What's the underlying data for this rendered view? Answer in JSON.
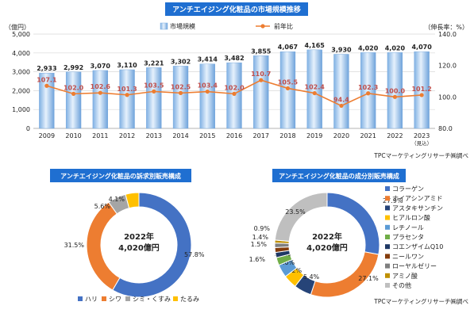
{
  "chart_data": [
    {
      "type": "bar",
      "title": "アンチエイジング化粧品の市場規模推移",
      "ylabel_left": "（億円）",
      "ylabel_right": "（伸長率：%）",
      "source": "TPCマーケティングリサーチ㈱調べ",
      "categories": [
        "2009",
        "2010",
        "2011",
        "2012",
        "2013",
        "2014",
        "2015",
        "2016",
        "2017",
        "2018",
        "2019",
        "2020",
        "2021",
        "2022",
        "2023"
      ],
      "category_sub": {
        "2023": "（見込）"
      },
      "series": [
        {
          "name": "市場規模",
          "kind": "bar",
          "axis": "left",
          "color": "#a9cdf0",
          "values": [
            2933,
            2992,
            3070,
            3110,
            3221,
            3302,
            3414,
            3482,
            3855,
            4067,
            4165,
            3930,
            4020,
            4020,
            4070
          ]
        },
        {
          "name": "前年比",
          "kind": "line",
          "axis": "right",
          "color": "#ed7d31",
          "values": [
            107.1,
            102.0,
            102.6,
            101.3,
            103.5,
            102.5,
            103.4,
            102.0,
            110.7,
            105.5,
            102.4,
            94.4,
            102.3,
            100.0,
            101.2
          ]
        }
      ],
      "ylim": [
        0,
        5000
      ],
      "yticks": [
        "0",
        "1,000",
        "2,000",
        "3,000",
        "4,000",
        "5,000"
      ],
      "ylim_right": [
        80,
        140
      ],
      "yticks_right": [
        "80.0",
        "100.0",
        "120.0",
        "140.0"
      ],
      "grid": true,
      "legend": "top-center"
    },
    {
      "type": "pie",
      "title": "アンチエイジング化粧品の訴求別販売構成",
      "center_label": [
        "2022年",
        "4,020億円"
      ],
      "slices": [
        {
          "label": "ハリ",
          "value": 57.8,
          "value_label": "57.8%",
          "color": "#4472c4"
        },
        {
          "label": "シワ",
          "value": 31.5,
          "value_label": "31.5%",
          "color": "#ed7d31"
        },
        {
          "label": "シミ・くすみ",
          "value": 5.6,
          "value_label": "5.6%",
          "color": "#a5a5a5"
        },
        {
          "label": "たるみ",
          "value": 4.1,
          "value_label": "4.1%",
          "color": "#ffc000"
        }
      ],
      "legend": "bottom"
    },
    {
      "type": "pie",
      "title": "アンチエイジング化粧品の成分別販売構成",
      "center_label": [
        "2022年",
        "4,020億円"
      ],
      "source": "TPCマーケティングリサーチ㈱調べ",
      "slices": [
        {
          "label": "コラーゲン",
          "value": 27.9,
          "value_label": "27.9%",
          "color": "#4472c4"
        },
        {
          "label": "ナイアシンアミド",
          "value": 27.1,
          "value_label": "27.1%",
          "color": "#ed7d31"
        },
        {
          "label": "アスタキサンチン",
          "value": 5.4,
          "value_label": "5.4%",
          "color": "#264478"
        },
        {
          "label": "ヒアルロン酸",
          "value": 4.2,
          "value_label": "4.2%",
          "color": "#ffc000"
        },
        {
          "label": "レチノール",
          "value": 4.0,
          "value_label": "4.0%",
          "color": "#5b9bd5"
        },
        {
          "label": "プラセンタ",
          "value": 2.4,
          "value_label": "2.4%",
          "color": "#70ad47"
        },
        {
          "label": "コエンザイムQ10",
          "value": 1.6,
          "value_label": "1.6%",
          "color": "#1f3864"
        },
        {
          "label": "ニールワン",
          "value": 1.5,
          "value_label": "1.5%",
          "color": "#843c0c"
        },
        {
          "label": "ローヤルゼリー",
          "value": 1.4,
          "value_label": "1.4%",
          "color": "#7f7f7f"
        },
        {
          "label": "アミノ酸",
          "value": 0.9,
          "value_label": "0.9%",
          "color": "#bf9000"
        },
        {
          "label": "その他",
          "value": 23.5,
          "value_label": "23.5%",
          "color": "#bfbfbf"
        }
      ],
      "legend": "right"
    }
  ]
}
